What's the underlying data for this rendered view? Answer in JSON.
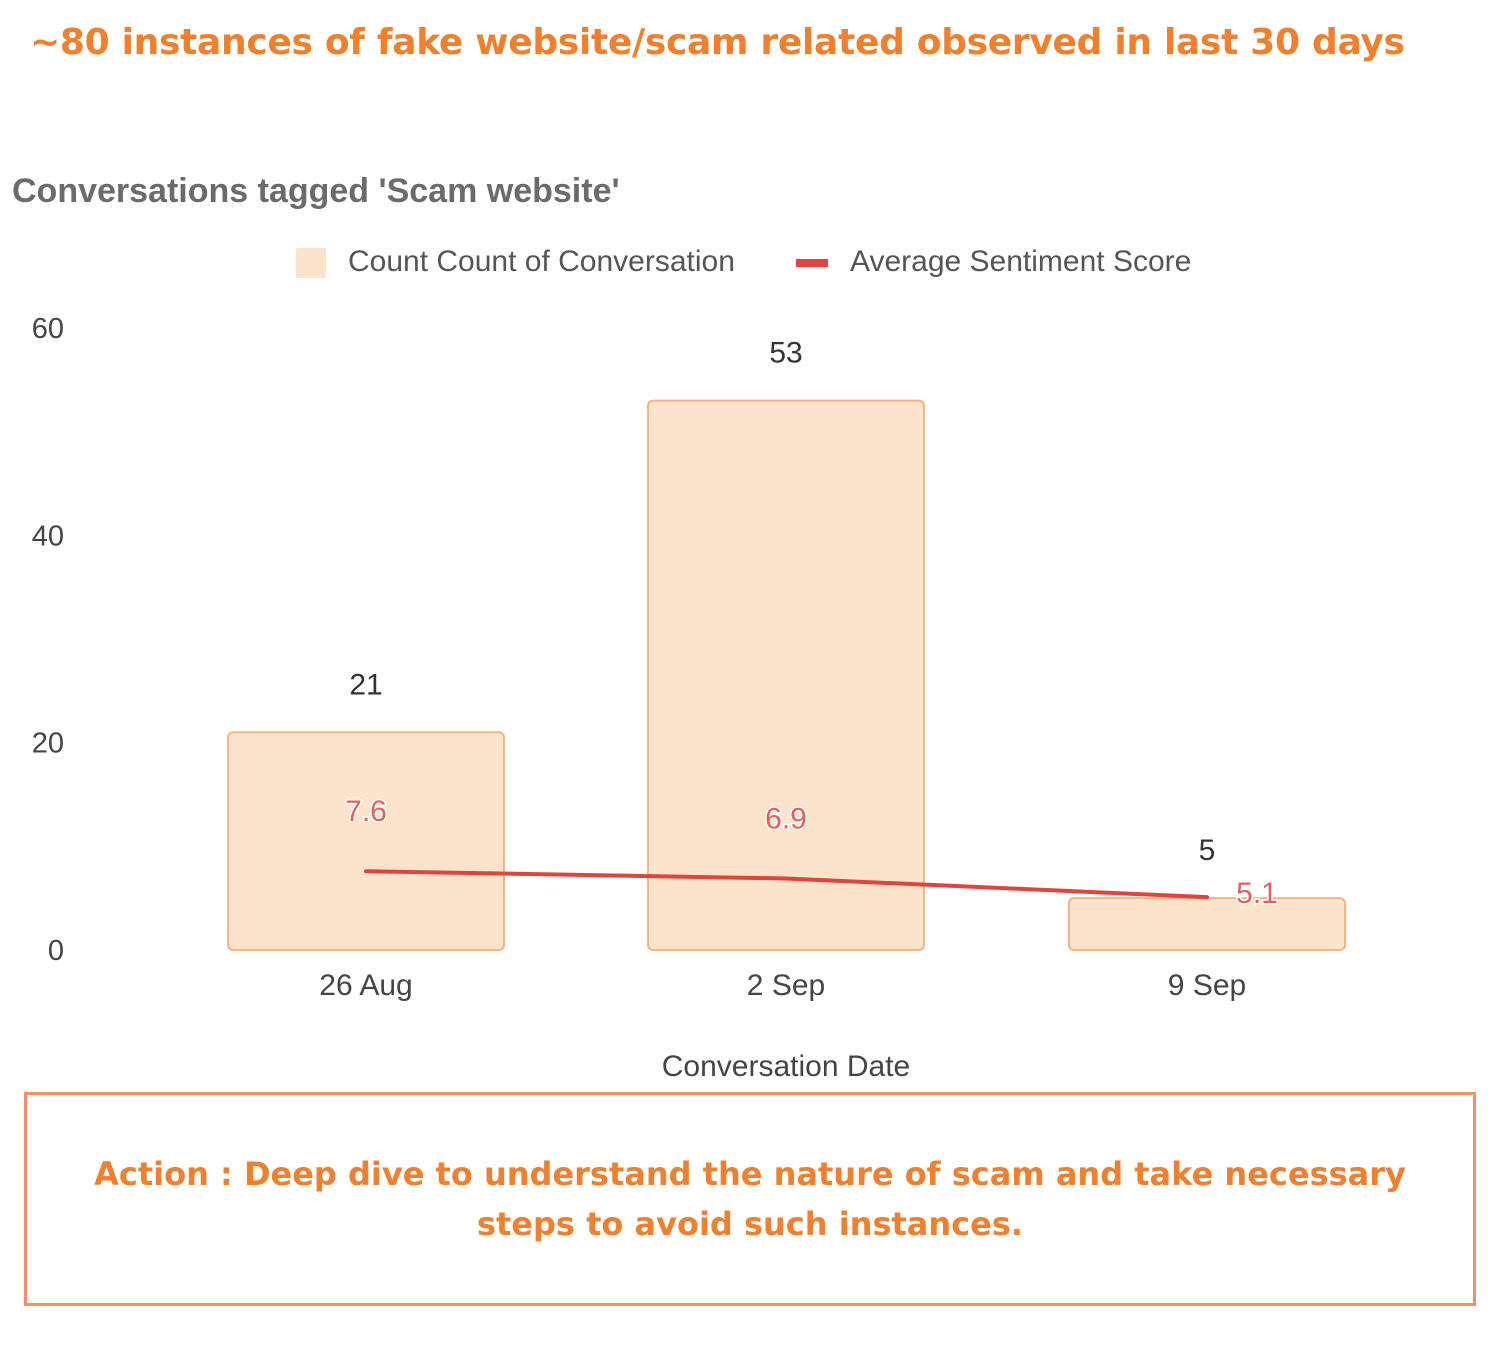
{
  "headline": "~80 instances of fake website/scam related observed in last 30 days",
  "action_text": "Action : Deep dive to understand the nature of scam and take necessary steps to avoid such instances.",
  "colors": {
    "accent": "#f07f2e",
    "bar_fill": "#fce4cc",
    "bar_stroke": "#f3b583",
    "line": "#e0443c",
    "line_label": "#e06060"
  },
  "chart_data": {
    "type": "bar",
    "title": "Conversations tagged 'Scam website'",
    "xlabel": "Conversation Date",
    "ylabel": "",
    "categories": [
      "26 Aug",
      "2 Sep",
      "9 Sep"
    ],
    "ylim": [
      0,
      60
    ],
    "yticks": [
      "0",
      "20",
      "40",
      "60"
    ],
    "grid": false,
    "legend_position": "top-center",
    "series": [
      {
        "name": "Count Count of Conversation",
        "type": "bar",
        "values": [
          21,
          53,
          5
        ]
      },
      {
        "name": "Average Sentiment Score",
        "type": "line",
        "values": [
          7.6,
          6.9,
          5.1
        ]
      }
    ]
  }
}
